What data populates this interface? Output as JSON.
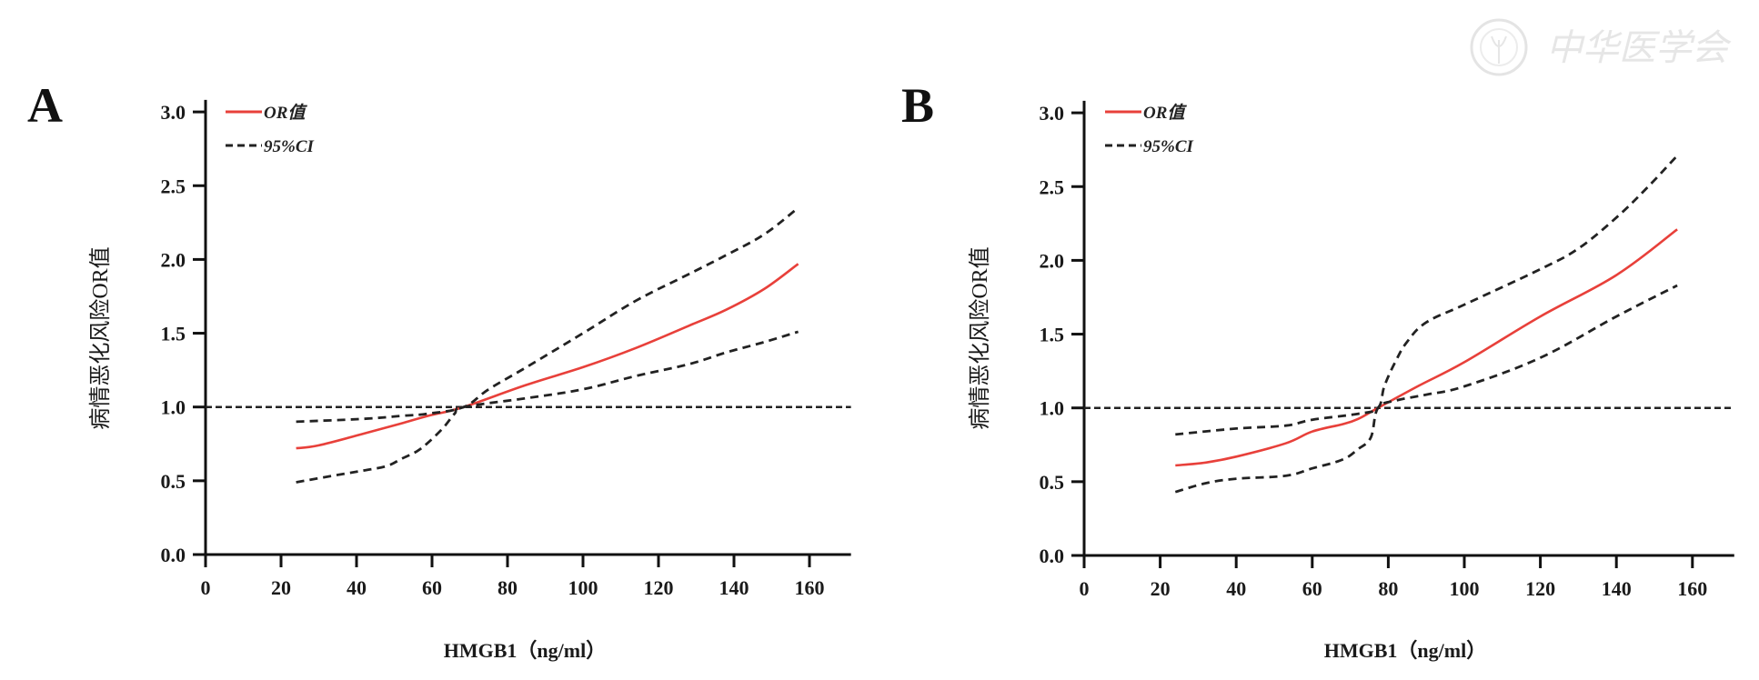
{
  "watermark": {
    "text": "中华医学会",
    "icon": "society-seal-icon"
  },
  "chart_data": [
    {
      "type": "line",
      "panel": "A",
      "title": "",
      "xlabel": "HMGB1（ng/ml）",
      "ylabel": "病情恶化风险OR值",
      "xlim": [
        0,
        171
      ],
      "ylim": [
        0,
        3.1
      ],
      "xticks": [
        0,
        20,
        40,
        60,
        80,
        100,
        120,
        140,
        160
      ],
      "xtick_labels": [
        "0",
        "20",
        "40",
        "60",
        "80",
        "100",
        "120",
        "140",
        "160"
      ],
      "yticks": [
        0,
        0.5,
        1.0,
        1.5,
        2.0,
        2.5,
        3.0
      ],
      "ytick_labels": [
        "0.0",
        "0.5",
        "1.0",
        "1.5",
        "2.0",
        "2.5",
        "3.0"
      ],
      "grid": false,
      "legend": {
        "position": "top-left",
        "entries": [
          {
            "label": "OR值",
            "style": "solid",
            "color": "#e8403a"
          },
          {
            "label": "95%CI",
            "style": "dashed",
            "color": "#222222"
          }
        ]
      },
      "reference_line": {
        "y": 1.0,
        "style": "dashed",
        "color": "#222222"
      },
      "series": [
        {
          "name": "OR值",
          "style": "solid",
          "color": "#e8403a",
          "x": [
            24,
            30,
            42,
            52,
            59,
            68.4,
            85,
            100,
            114,
            128,
            138,
            148,
            157
          ],
          "y": [
            0.72,
            0.74,
            0.82,
            0.89,
            0.94,
            1.0,
            1.15,
            1.27,
            1.4,
            1.55,
            1.66,
            1.8,
            1.97
          ]
        },
        {
          "name": "95%CI upper",
          "style": "dashed",
          "color": "#222222",
          "x": [
            24,
            42,
            52,
            59,
            68.4,
            75,
            85,
            100,
            114,
            128,
            138,
            148,
            157
          ],
          "y": [
            0.9,
            0.92,
            0.94,
            0.955,
            1.0,
            1.12,
            1.27,
            1.5,
            1.72,
            1.9,
            2.03,
            2.17,
            2.35
          ]
        },
        {
          "name": "95%CI lower",
          "style": "dashed",
          "color": "#222222",
          "x": [
            24,
            35,
            42,
            48,
            52,
            56,
            59,
            63,
            66,
            68.4,
            85,
            100,
            114,
            128,
            138,
            148,
            157
          ],
          "y": [
            0.49,
            0.54,
            0.57,
            0.6,
            0.65,
            0.7,
            0.76,
            0.86,
            0.955,
            1.0,
            1.06,
            1.12,
            1.21,
            1.29,
            1.37,
            1.44,
            1.51
          ]
        }
      ]
    },
    {
      "type": "line",
      "panel": "B",
      "title": "",
      "xlabel": "HMGB1（ng/ml）",
      "ylabel": "病情恶化风险OR值",
      "xlim": [
        0,
        171
      ],
      "ylim": [
        0,
        3.1
      ],
      "xticks": [
        0,
        20,
        40,
        60,
        80,
        100,
        120,
        140,
        160
      ],
      "xtick_labels": [
        "0",
        "20",
        "40",
        "60",
        "80",
        "100",
        "120",
        "140",
        "160"
      ],
      "yticks": [
        0,
        0.5,
        1.0,
        1.5,
        2.0,
        2.5,
        3.0
      ],
      "ytick_labels": [
        "0.0",
        "0.5",
        "1.0",
        "1.5",
        "2.0",
        "2.5",
        "3.0"
      ],
      "grid": false,
      "legend": {
        "position": "top-left",
        "entries": [
          {
            "label": "OR值",
            "style": "solid",
            "color": "#e8403a"
          },
          {
            "label": "95%CI",
            "style": "dashed",
            "color": "#222222"
          }
        ]
      },
      "reference_line": {
        "y": 1.0,
        "style": "dashed",
        "color": "#222222"
      },
      "series": [
        {
          "name": "OR值",
          "style": "solid",
          "color": "#e8403a",
          "x": [
            24,
            32,
            40,
            53,
            60,
            68,
            72,
            77.3,
            88,
            100,
            120,
            140,
            156
          ],
          "y": [
            0.61,
            0.63,
            0.67,
            0.76,
            0.84,
            0.89,
            0.925,
            1.0,
            1.15,
            1.31,
            1.62,
            1.9,
            2.21
          ]
        },
        {
          "name": "95%CI upper",
          "style": "dashed",
          "color": "#222222",
          "x": [
            24,
            40,
            53,
            60,
            72,
            77.3,
            79,
            82,
            85,
            90,
            100,
            120,
            130,
            140,
            148,
            156
          ],
          "y": [
            0.82,
            0.86,
            0.88,
            0.92,
            0.96,
            1.0,
            1.15,
            1.32,
            1.45,
            1.58,
            1.7,
            1.94,
            2.08,
            2.29,
            2.49,
            2.71
          ]
        },
        {
          "name": "95%CI lower",
          "style": "dashed",
          "color": "#222222",
          "x": [
            24,
            32,
            40,
            53,
            60,
            68,
            72,
            75.4,
            77.3,
            82,
            90,
            100,
            120,
            140,
            156
          ],
          "y": [
            0.43,
            0.49,
            0.52,
            0.54,
            0.59,
            0.65,
            0.72,
            0.8,
            1.0,
            1.05,
            1.09,
            1.146,
            1.34,
            1.62,
            1.83
          ]
        }
      ]
    }
  ]
}
